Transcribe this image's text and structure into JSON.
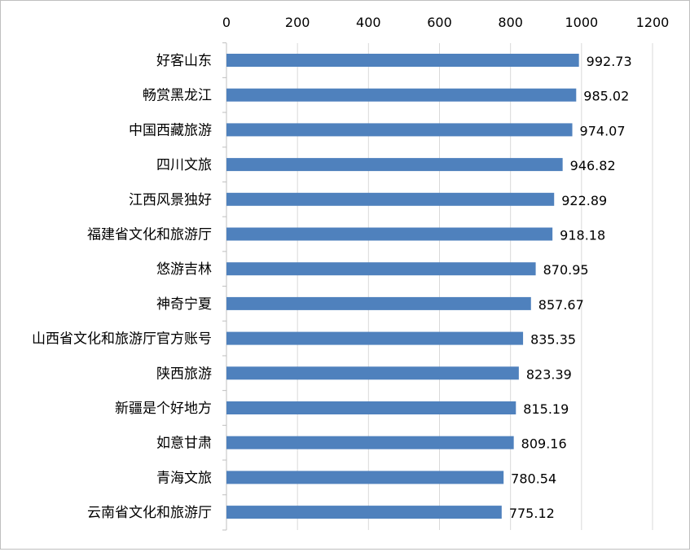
{
  "chart_data": {
    "type": "bar",
    "orientation": "horizontal",
    "x_axis_position": "top",
    "xlim": [
      0,
      1200
    ],
    "x_ticks": [
      0,
      200,
      400,
      600,
      800,
      1000,
      1200
    ],
    "grid": true,
    "legend": "none",
    "bar_color": "#4f81bd",
    "title": "",
    "xlabel": "",
    "ylabel": "",
    "categories": [
      "好客山东",
      "畅赏黑龙江",
      "中国西藏旅游",
      "四川文旅",
      "江西风景独好",
      "福建省文化和旅游厅",
      "悠游吉林",
      "神奇宁夏",
      "山西省文化和旅游厅官方账号",
      "陕西旅游",
      "新疆是个好地方",
      "如意甘肃",
      "青海文旅",
      "云南省文化和旅游厅"
    ],
    "values": [
      992.73,
      985.02,
      974.07,
      946.82,
      922.89,
      918.18,
      870.95,
      857.67,
      835.35,
      823.39,
      815.19,
      809.16,
      780.54,
      775.12
    ],
    "data_labels": [
      "992.73",
      "985.02",
      "974.07",
      "946.82",
      "922.89",
      "918.18",
      "870.95",
      "857.67",
      "835.35",
      "823.39",
      "815.19",
      "809.16",
      "780.54",
      "775.12"
    ]
  }
}
